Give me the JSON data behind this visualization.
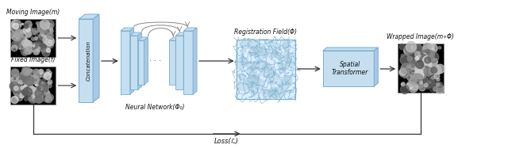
{
  "bg_color": "#ffffff",
  "light_blue": "#c5dff0",
  "mid_blue": "#a8c8e8",
  "steel_blue": "#7aadcc",
  "grid_blue": "#b0d4e8",
  "dark_outline": "#555555",
  "arrow_color": "#333333",
  "text_color": "#111111",
  "label_color": "#222222",
  "title": "",
  "moving_label": "Moving Image(m)",
  "fixed_label": "Fixed Image(f)",
  "concat_label": "Concatenation",
  "nn_label": "Neural Network(Φ₀)",
  "reg_field_label": "Registration Field(Φ)",
  "spatial_label": "Spatial\nTransformer",
  "wrapped_label": "Wrapped Image(m∘Φ)",
  "loss_label": "Loss(ℒ)"
}
